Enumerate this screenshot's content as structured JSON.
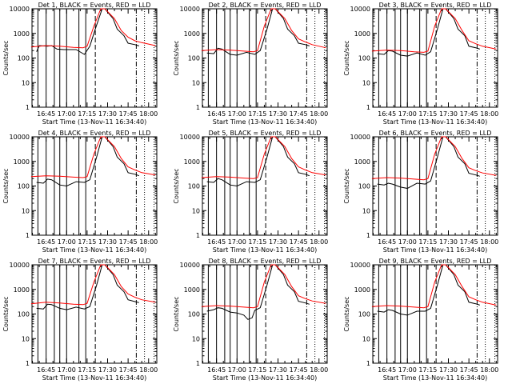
{
  "colors": {
    "events": "#000000",
    "lld": "#ff0000",
    "axes": "#000000",
    "background": "#ffffff"
  },
  "chart_data": [
    {
      "type": "line",
      "title": "Det 1, BLACK = Events, RED = LLD",
      "xlabel": "Start Time (13-Nov-11 16:34:40)",
      "ylabel": "Counts/sec",
      "y_scale": "log",
      "ylim": [
        1,
        10000
      ],
      "x_tick_labels": [
        "16:45",
        "17:00",
        "17:15",
        "17:30",
        "17:45",
        "18:00"
      ],
      "y_tick_labels": [
        "1",
        "10",
        "100",
        "1000",
        "10000"
      ],
      "series": [
        {
          "name": "Events",
          "x": [
            "16:38",
            "16:40",
            "16:46",
            "16:49",
            "16:53",
            "16:58",
            "17:07",
            "17:13",
            "17:17",
            "17:21",
            "17:26",
            "17:28",
            "17:34",
            "17:37",
            "17:42",
            "17:45",
            "17:50",
            "17:53"
          ],
          "y": [
            180,
            320,
            300,
            320,
            230,
            220,
            220,
            140,
            300,
            1500,
            10000,
            10000,
            4000,
            1500,
            800,
            400,
            350,
            310
          ]
        },
        {
          "name": "LLD",
          "x": [
            "16:34",
            "16:45",
            "16:55",
            "17:05",
            "17:12",
            "17:15",
            "17:20",
            "17:25",
            "17:28",
            "17:35",
            "17:40",
            "17:45",
            "17:50",
            "17:55",
            "18:05"
          ],
          "y": [
            280,
            320,
            300,
            270,
            260,
            300,
            2000,
            10000,
            10000,
            4000,
            1300,
            700,
            500,
            420,
            320
          ]
        }
      ]
    },
    {
      "type": "line",
      "title": "Det 2, BLACK = Events, RED = LLD",
      "xlabel": "Start Time (13-Nov-11 16:34:40)",
      "ylabel": "Counts/sec",
      "y_scale": "log",
      "ylim": [
        1,
        10000
      ],
      "x_tick_labels": [
        "16:45",
        "17:00",
        "17:15",
        "17:30",
        "17:45",
        "18:00"
      ],
      "y_tick_labels": [
        "1",
        "10",
        "100",
        "1000",
        "10000"
      ],
      "series": [
        {
          "name": "Events",
          "x": [
            "16:38",
            "16:43",
            "16:46",
            "16:49",
            "16:55",
            "17:00",
            "17:07",
            "17:13",
            "17:17",
            "17:22",
            "17:26",
            "17:28",
            "17:34",
            "17:37",
            "17:42",
            "17:45",
            "17:50",
            "17:53"
          ],
          "y": [
            160,
            150,
            250,
            230,
            140,
            130,
            170,
            140,
            200,
            1500,
            10000,
            10000,
            4000,
            1500,
            800,
            400,
            350,
            310
          ]
        },
        {
          "name": "LLD",
          "x": [
            "16:34",
            "16:45",
            "16:55",
            "17:05",
            "17:12",
            "17:15",
            "17:20",
            "17:25",
            "17:28",
            "17:35",
            "17:40",
            "17:45",
            "17:50",
            "17:55",
            "18:05"
          ],
          "y": [
            200,
            220,
            210,
            190,
            180,
            200,
            2000,
            10000,
            10000,
            4000,
            1300,
            600,
            450,
            350,
            260
          ]
        }
      ]
    },
    {
      "type": "line",
      "title": "Det 3, BLACK = Events, RED = LLD",
      "xlabel": "Start Time (13-Nov-11 16:34:40)",
      "ylabel": "Counts/sec",
      "y_scale": "log",
      "ylim": [
        1,
        10000
      ],
      "x_tick_labels": [
        "16:45",
        "17:00",
        "17:15",
        "17:30",
        "17:45",
        "18:00"
      ],
      "y_tick_labels": [
        "1",
        "10",
        "100",
        "1000",
        "10000"
      ],
      "series": [
        {
          "name": "Events",
          "x": [
            "16:38",
            "16:43",
            "16:46",
            "16:49",
            "16:55",
            "17:00",
            "17:07",
            "17:13",
            "17:17",
            "17:22",
            "17:26",
            "17:28",
            "17:34",
            "17:37",
            "17:42",
            "17:45",
            "17:50",
            "17:53"
          ],
          "y": [
            150,
            140,
            200,
            190,
            130,
            120,
            160,
            130,
            180,
            1500,
            10000,
            10000,
            4000,
            1500,
            800,
            300,
            260,
            230
          ]
        },
        {
          "name": "LLD",
          "x": [
            "16:34",
            "16:45",
            "16:55",
            "17:05",
            "17:12",
            "17:15",
            "17:20",
            "17:25",
            "17:28",
            "17:35",
            "17:40",
            "17:45",
            "17:50",
            "17:55",
            "18:05"
          ],
          "y": [
            190,
            210,
            200,
            180,
            170,
            190,
            2000,
            10000,
            10000,
            4000,
            1300,
            500,
            380,
            300,
            230
          ]
        }
      ]
    },
    {
      "type": "line",
      "title": "Det 4, BLACK = Events, RED = LLD",
      "xlabel": "Start Time (13-Nov-11 16:34:40)",
      "ylabel": "Counts/sec",
      "y_scale": "log",
      "ylim": [
        1,
        10000
      ],
      "x_tick_labels": [
        "16:45",
        "17:00",
        "17:15",
        "17:30",
        "17:45",
        "18:00"
      ],
      "y_tick_labels": [
        "1",
        "10",
        "100",
        "1000",
        "10000"
      ],
      "series": [
        {
          "name": "Events",
          "x": [
            "16:38",
            "16:43",
            "16:46",
            "16:49",
            "16:55",
            "17:00",
            "17:07",
            "17:13",
            "17:17",
            "17:22",
            "17:26",
            "17:28",
            "17:34",
            "17:37",
            "17:42",
            "17:45",
            "17:50",
            "17:53"
          ],
          "y": [
            140,
            130,
            190,
            180,
            110,
            100,
            150,
            140,
            180,
            1500,
            10000,
            10000,
            4000,
            1500,
            800,
            350,
            300,
            260
          ]
        },
        {
          "name": "LLD",
          "x": [
            "16:34",
            "16:45",
            "16:55",
            "17:05",
            "17:12",
            "17:15",
            "17:20",
            "17:25",
            "17:28",
            "17:35",
            "17:40",
            "17:45",
            "17:50",
            "17:55",
            "18:05"
          ],
          "y": [
            240,
            260,
            250,
            230,
            220,
            240,
            2000,
            10000,
            10000,
            4000,
            1300,
            600,
            450,
            350,
            280
          ]
        }
      ]
    },
    {
      "type": "line",
      "title": "Det 5, BLACK = Events, RED = LLD",
      "xlabel": "Start Time (13-Nov-11 16:34:40)",
      "ylabel": "Counts/sec",
      "y_scale": "log",
      "ylim": [
        1,
        10000
      ],
      "x_tick_labels": [
        "16:45",
        "17:00",
        "17:15",
        "17:30",
        "17:45",
        "18:00"
      ],
      "y_tick_labels": [
        "1",
        "10",
        "100",
        "1000",
        "10000"
      ],
      "series": [
        {
          "name": "Events",
          "x": [
            "16:38",
            "16:43",
            "16:46",
            "16:49",
            "16:55",
            "17:00",
            "17:07",
            "17:13",
            "17:17",
            "17:22",
            "17:26",
            "17:28",
            "17:34",
            "17:37",
            "17:42",
            "17:45",
            "17:50",
            "17:53"
          ],
          "y": [
            150,
            140,
            200,
            180,
            110,
            100,
            150,
            140,
            180,
            1500,
            10000,
            10000,
            4000,
            1500,
            800,
            350,
            300,
            260
          ]
        },
        {
          "name": "LLD",
          "x": [
            "16:34",
            "16:45",
            "16:55",
            "17:05",
            "17:12",
            "17:15",
            "17:20",
            "17:25",
            "17:28",
            "17:35",
            "17:40",
            "17:45",
            "17:50",
            "17:55",
            "18:05"
          ],
          "y": [
            220,
            240,
            230,
            210,
            200,
            220,
            2000,
            10000,
            10000,
            4000,
            1300,
            600,
            450,
            350,
            280
          ]
        }
      ]
    },
    {
      "type": "line",
      "title": "Det 6, BLACK = Events, RED = LLD",
      "xlabel": "Start Time (13-Nov-11 16:34:40)",
      "ylabel": "Counts/sec",
      "y_scale": "log",
      "ylim": [
        1,
        10000
      ],
      "x_tick_labels": [
        "16:45",
        "17:00",
        "17:15",
        "17:30",
        "17:45",
        "18:00"
      ],
      "y_tick_labels": [
        "1",
        "10",
        "100",
        "1000",
        "10000"
      ],
      "series": [
        {
          "name": "Events",
          "x": [
            "16:38",
            "16:43",
            "16:46",
            "16:49",
            "16:55",
            "17:00",
            "17:07",
            "17:13",
            "17:17",
            "17:22",
            "17:26",
            "17:28",
            "17:34",
            "17:37",
            "17:42",
            "17:45",
            "17:50",
            "17:53"
          ],
          "y": [
            120,
            110,
            130,
            120,
            90,
            80,
            130,
            120,
            160,
            1500,
            10000,
            10000,
            4000,
            1500,
            800,
            330,
            280,
            250
          ]
        },
        {
          "name": "LLD",
          "x": [
            "16:34",
            "16:45",
            "16:55",
            "17:05",
            "17:12",
            "17:15",
            "17:20",
            "17:25",
            "17:28",
            "17:35",
            "17:40",
            "17:45",
            "17:50",
            "17:55",
            "18:05"
          ],
          "y": [
            200,
            220,
            210,
            190,
            180,
            200,
            2000,
            10000,
            10000,
            4000,
            1300,
            550,
            420,
            340,
            270
          ]
        }
      ]
    },
    {
      "type": "line",
      "title": "Det 7, BLACK = Events, RED = LLD",
      "xlabel": "Start Time (13-Nov-11 16:34:40)",
      "ylabel": "Counts/sec",
      "y_scale": "log",
      "ylim": [
        1,
        10000
      ],
      "x_tick_labels": [
        "16:45",
        "17:00",
        "17:15",
        "17:30",
        "17:45",
        "18:00"
      ],
      "y_tick_labels": [
        "1",
        "10",
        "100",
        "1000",
        "10000"
      ],
      "series": [
        {
          "name": "Events",
          "x": [
            "16:38",
            "16:43",
            "16:46",
            "16:49",
            "16:55",
            "17:00",
            "17:07",
            "17:13",
            "17:17",
            "17:22",
            "17:26",
            "17:28",
            "17:34",
            "17:37",
            "17:42",
            "17:45",
            "17:50",
            "17:53"
          ],
          "y": [
            170,
            160,
            250,
            240,
            170,
            150,
            190,
            160,
            200,
            1500,
            10000,
            10000,
            4000,
            1500,
            800,
            380,
            320,
            290
          ]
        },
        {
          "name": "LLD",
          "x": [
            "16:34",
            "16:45",
            "16:55",
            "17:05",
            "17:12",
            "17:15",
            "17:20",
            "17:25",
            "17:28",
            "17:35",
            "17:40",
            "17:45",
            "17:50",
            "17:55",
            "18:05"
          ],
          "y": [
            260,
            300,
            280,
            250,
            240,
            270,
            2000,
            10000,
            10000,
            4000,
            1300,
            650,
            480,
            380,
            300
          ]
        }
      ]
    },
    {
      "type": "line",
      "title": "Det 8, BLACK = Events, RED = LLD",
      "xlabel": "Start Time (13-Nov-11 16:34:40)",
      "ylabel": "Counts/sec",
      "y_scale": "log",
      "ylim": [
        1,
        10000
      ],
      "x_tick_labels": [
        "16:45",
        "17:00",
        "17:15",
        "17:30",
        "17:45",
        "18:00"
      ],
      "y_tick_labels": [
        "1",
        "10",
        "100",
        "1000",
        "10000"
      ],
      "series": [
        {
          "name": "Events",
          "x": [
            "16:38",
            "16:43",
            "16:46",
            "16:49",
            "16:55",
            "17:00",
            "17:05",
            "17:08",
            "17:11",
            "17:13",
            "17:17",
            "17:22",
            "17:26",
            "17:28",
            "17:34",
            "17:37",
            "17:42",
            "17:45",
            "17:50",
            "17:53"
          ],
          "y": [
            130,
            150,
            180,
            170,
            120,
            110,
            90,
            60,
            70,
            140,
            180,
            1500,
            10000,
            10000,
            4000,
            1500,
            800,
            330,
            280,
            250
          ]
        },
        {
          "name": "LLD",
          "x": [
            "16:34",
            "16:45",
            "16:55",
            "17:05",
            "17:12",
            "17:15",
            "17:20",
            "17:25",
            "17:28",
            "17:35",
            "17:40",
            "17:45",
            "17:50",
            "17:55",
            "18:05"
          ],
          "y": [
            200,
            220,
            210,
            190,
            180,
            200,
            2000,
            10000,
            10000,
            4000,
            1300,
            550,
            420,
            340,
            270
          ]
        }
      ]
    },
    {
      "type": "line",
      "title": "Det 9, BLACK = Events, RED = LLD",
      "xlabel": "Start Time (13-Nov-11 16:34:40)",
      "ylabel": "Counts/sec",
      "y_scale": "log",
      "ylim": [
        1,
        10000
      ],
      "x_tick_labels": [
        "16:45",
        "17:00",
        "17:15",
        "17:30",
        "17:45",
        "18:00"
      ],
      "y_tick_labels": [
        "1",
        "10",
        "100",
        "1000",
        "10000"
      ],
      "series": [
        {
          "name": "Events",
          "x": [
            "16:38",
            "16:43",
            "16:46",
            "16:49",
            "16:55",
            "17:00",
            "17:07",
            "17:13",
            "17:17",
            "17:22",
            "17:26",
            "17:28",
            "17:34",
            "17:37",
            "17:42",
            "17:45",
            "17:50",
            "17:53"
          ],
          "y": [
            130,
            120,
            150,
            140,
            100,
            90,
            130,
            130,
            170,
            1500,
            10000,
            10000,
            4000,
            1500,
            800,
            300,
            260,
            230
          ]
        },
        {
          "name": "LLD",
          "x": [
            "16:34",
            "16:45",
            "16:55",
            "17:05",
            "17:12",
            "17:15",
            "17:20",
            "17:25",
            "17:28",
            "17:35",
            "17:40",
            "17:45",
            "17:50",
            "17:55",
            "18:05"
          ],
          "y": [
            200,
            220,
            210,
            190,
            180,
            200,
            2000,
            10000,
            10000,
            4000,
            1300,
            500,
            380,
            300,
            230
          ]
        }
      ]
    }
  ]
}
